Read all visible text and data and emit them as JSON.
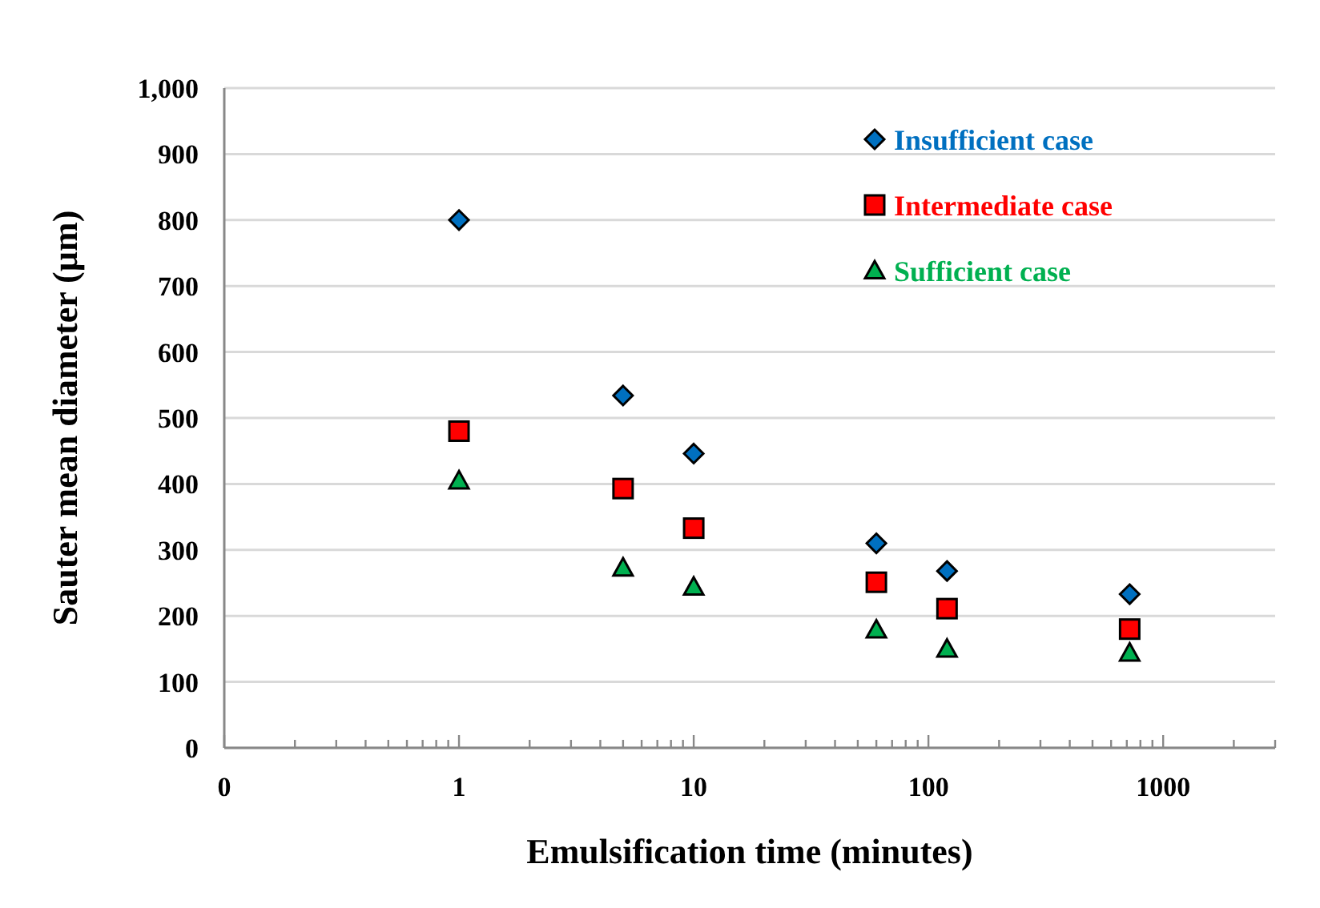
{
  "chart_data": {
    "type": "scatter",
    "xlabel": "Emulsification time (minutes)",
    "ylabel": "Sauter mean diameter (µm)",
    "log": "x",
    "xlim": [
      0.1,
      3000
    ],
    "xticks": [
      {
        "value": 0.1,
        "label": "0"
      },
      1,
      10,
      100,
      1000
    ],
    "ylim": [
      0,
      1000
    ],
    "yticks": [
      {
        "value": 0,
        "label": "0"
      },
      100,
      200,
      300,
      400,
      500,
      600,
      700,
      800,
      900,
      {
        "value": 1000,
        "label": "1,000"
      }
    ],
    "grid": "y",
    "legend": "top right",
    "series": [
      {
        "name": "Insufficient case",
        "color": "#0070c0",
        "marker": "diamond",
        "x": [
          1,
          5,
          10,
          60,
          120,
          720
        ],
        "values": [
          800,
          534,
          446,
          310,
          268,
          233
        ]
      },
      {
        "name": "Intermediate case",
        "color": "#ff0000",
        "marker": "square",
        "x": [
          1,
          5,
          10,
          60,
          120,
          720
        ],
        "values": [
          480,
          393,
          333,
          251,
          211,
          180
        ]
      },
      {
        "name": "Sufficient case",
        "color": "#00b050",
        "marker": "triangle",
        "x": [
          1,
          5,
          10,
          60,
          120,
          720
        ],
        "values": [
          405,
          273,
          244,
          179,
          150,
          144
        ]
      }
    ]
  }
}
